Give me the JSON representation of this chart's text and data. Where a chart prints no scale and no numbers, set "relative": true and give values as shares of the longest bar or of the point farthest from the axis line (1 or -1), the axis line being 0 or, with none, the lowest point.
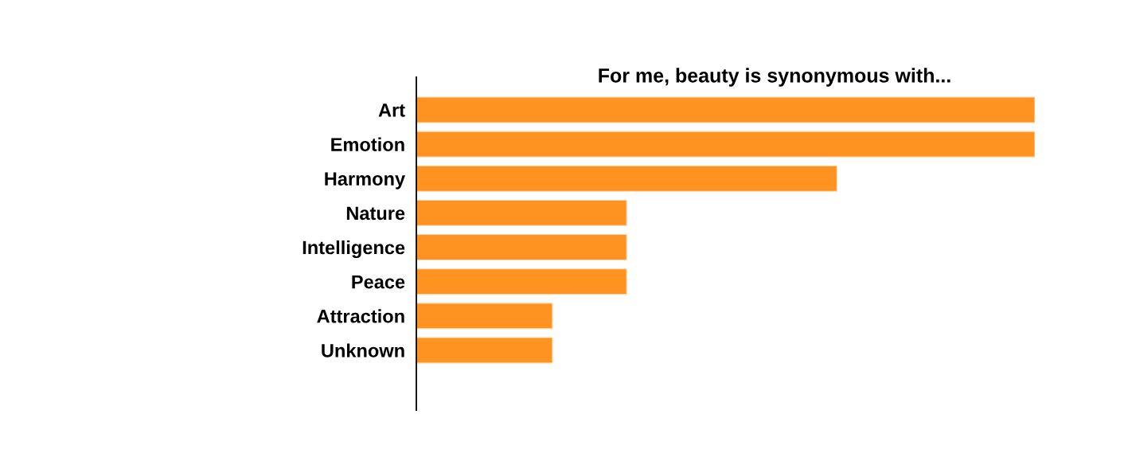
{
  "chart_data": {
    "type": "bar",
    "orientation": "horizontal",
    "relative": true,
    "title": "For me, beauty is synonymous with...",
    "categories": [
      "Art",
      "Emotion",
      "Harmony",
      "Nature",
      "Intelligence",
      "Peace",
      "Attraction",
      "Unknown"
    ],
    "values": [
      1,
      1,
      0.68,
      0.34,
      0.34,
      0.34,
      0.22,
      0.22
    ],
    "color": "#ff9322"
  }
}
